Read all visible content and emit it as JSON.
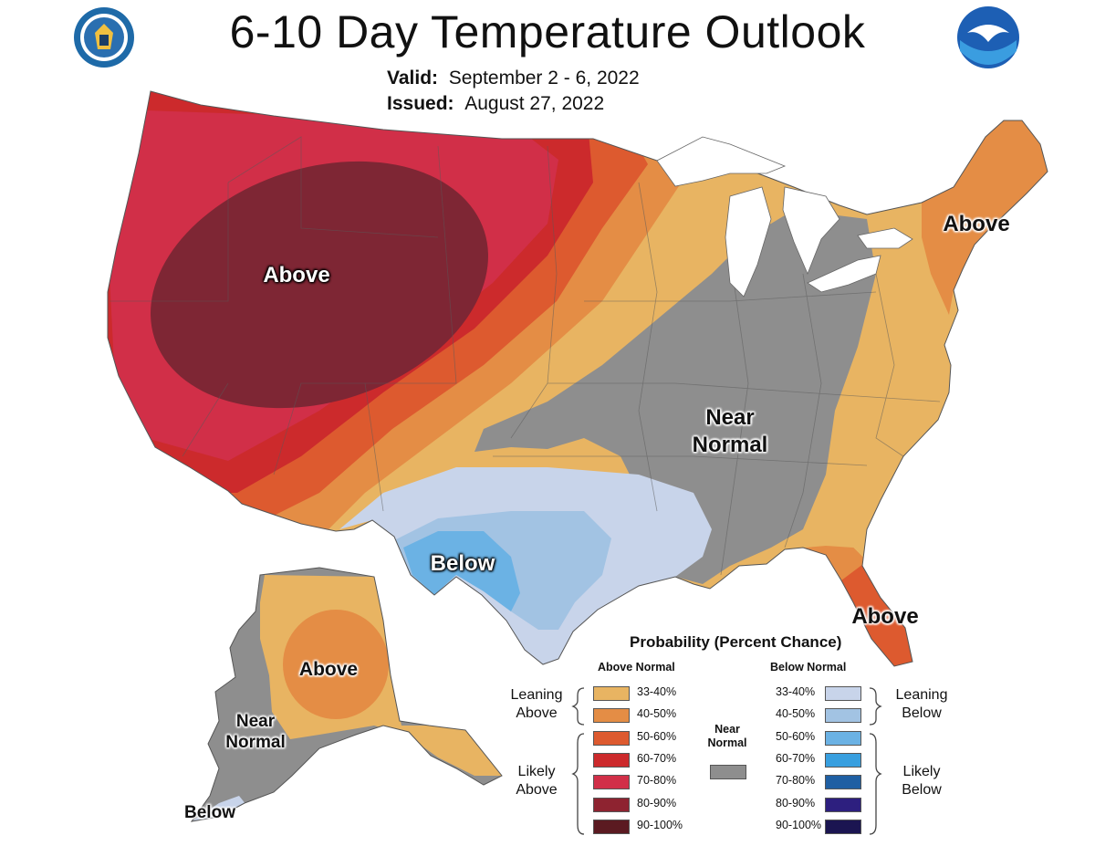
{
  "title": "6-10 Day Temperature Outlook",
  "valid": {
    "label": "Valid:",
    "value": "September 2 - 6, 2022"
  },
  "issued": {
    "label": "Issued:",
    "value": "August 27, 2022"
  },
  "logos": {
    "left": "department-of-commerce-seal",
    "right": "noaa-logo",
    "right_text": "NOAA"
  },
  "map_labels": {
    "west_above": "Above",
    "northeast_above": "Above",
    "central_near_normal_1": "Near",
    "central_near_normal_2": "Normal",
    "texas_below": "Below",
    "florida_above": "Above",
    "alaska_above": "Above",
    "alaska_near_normal_1": "Near",
    "alaska_near_normal_2": "Normal",
    "alaska_below": "Below"
  },
  "legend": {
    "title": "Probability (Percent Chance)",
    "above_header": "Above Normal",
    "below_header": "Below Normal",
    "near_normal_1": "Near",
    "near_normal_2": "Normal",
    "near_normal_color": "#8e8e8e",
    "leaning_above_1": "Leaning",
    "leaning_above_2": "Above",
    "likely_above_1": "Likely",
    "likely_above_2": "Above",
    "leaning_below_1": "Leaning",
    "leaning_below_2": "Below",
    "likely_below_1": "Likely",
    "likely_below_2": "Below",
    "above_bins": [
      {
        "label": "33-40%",
        "color": "#e8b462"
      },
      {
        "label": "40-50%",
        "color": "#e48d45"
      },
      {
        "label": "50-60%",
        "color": "#dd5a2f"
      },
      {
        "label": "60-70%",
        "color": "#cc2a2c"
      },
      {
        "label": "70-80%",
        "color": "#d12f48"
      },
      {
        "label": "80-90%",
        "color": "#8e2330"
      },
      {
        "label": "90-100%",
        "color": "#5b1a21"
      }
    ],
    "below_bins": [
      {
        "label": "33-40%",
        "color": "#c8d4ea"
      },
      {
        "label": "40-50%",
        "color": "#a2c3e3"
      },
      {
        "label": "50-60%",
        "color": "#6bb2e4"
      },
      {
        "label": "60-70%",
        "color": "#389fdf"
      },
      {
        "label": "70-80%",
        "color": "#1f5fa3"
      },
      {
        "label": "80-90%",
        "color": "#2d1f7f"
      },
      {
        "label": "90-100%",
        "color": "#1b1551"
      }
    ]
  }
}
